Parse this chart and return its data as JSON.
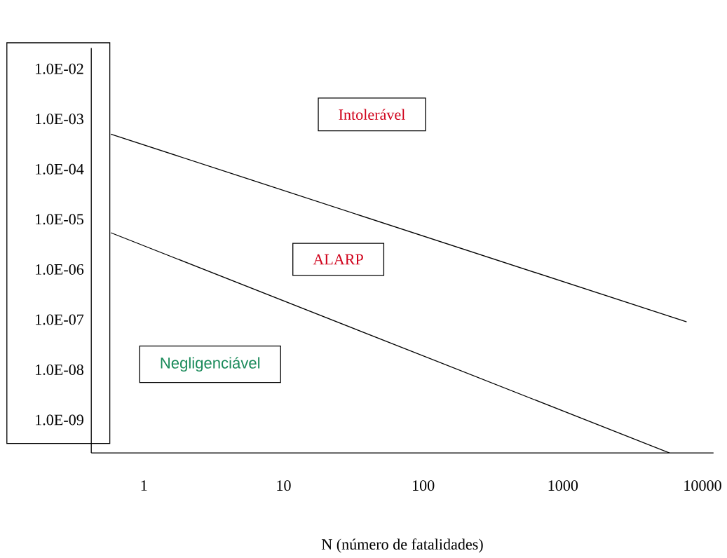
{
  "chart_data": {
    "type": "line",
    "xlabel": "N (número de fatalidades)",
    "log": "xy",
    "xlim": [
      0.42,
      12000
    ],
    "ylim": [
      2.2e-10,
      0.026
    ],
    "xticks": [
      1,
      10,
      100,
      1000,
      10000
    ],
    "yticks": [
      {
        "value": 0.01,
        "label": "1.0E-02"
      },
      {
        "value": 0.001,
        "label": "1.0E-03"
      },
      {
        "value": 0.0001,
        "label": "1.0E-04"
      },
      {
        "value": 1e-05,
        "label": "1.0E-05"
      },
      {
        "value": 1e-06,
        "label": "1.0E-06"
      },
      {
        "value": 1e-07,
        "label": "1.0E-07"
      },
      {
        "value": 1e-08,
        "label": "1.0E-08"
      },
      {
        "value": 1e-09,
        "label": "1.0E-09"
      }
    ],
    "series": [
      {
        "color": "#000000",
        "x": [
          0.58,
          7700
        ],
        "values": [
          0.0005,
          9e-08
        ]
      },
      {
        "color": "#000000",
        "x": [
          0.58,
          5800
        ],
        "values": [
          5.4e-06,
          2.2e-10
        ]
      }
    ],
    "annotations": [
      "Intolerável",
      "ALARP",
      "Negligenciável"
    ],
    "grid": false,
    "marker": "none",
    "line_style": "solid"
  }
}
